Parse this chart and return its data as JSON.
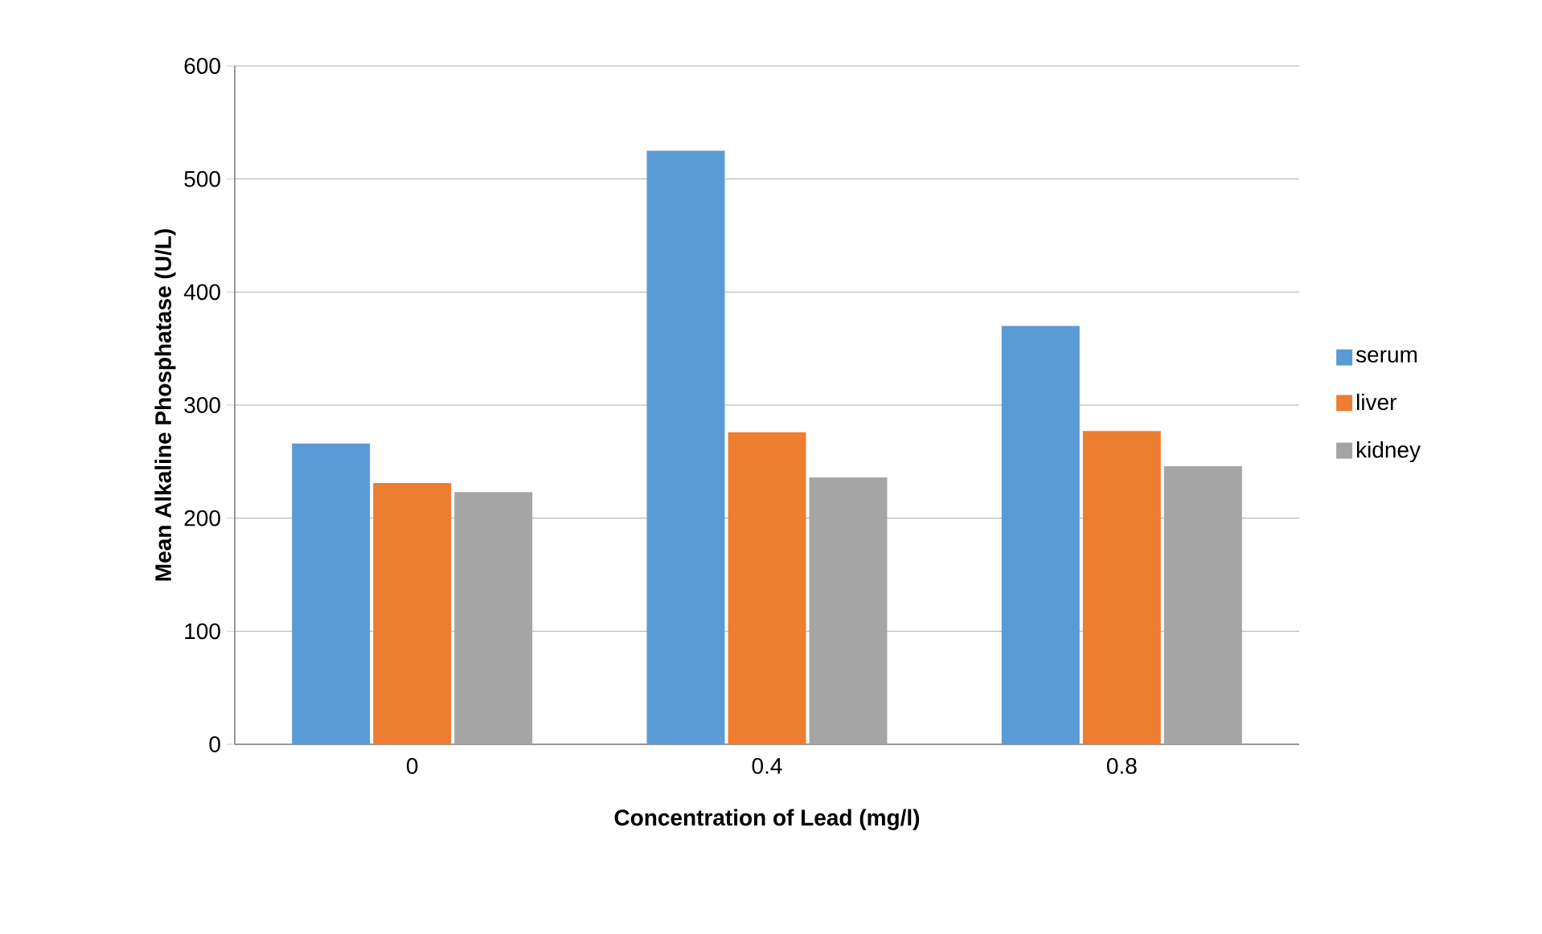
{
  "chart_data": {
    "type": "bar",
    "xlabel": "Concentration of Lead (mg/l)",
    "ylabel": "Mean Alkaline  Phosphatase (U/L)",
    "categories": [
      "0",
      "0.4",
      "0.8"
    ],
    "series": [
      {
        "name": "serum",
        "color": "#5b9bd5",
        "values": [
          266,
          525,
          370
        ]
      },
      {
        "name": "liver",
        "color": "#ed7d31",
        "values": [
          231,
          276,
          277
        ]
      },
      {
        "name": "kidney",
        "color": "#a5a5a5",
        "values": [
          223,
          236,
          246
        ]
      }
    ],
    "ylim": [
      0,
      600
    ],
    "yticks": [
      0,
      100,
      200,
      300,
      400,
      500,
      600
    ],
    "grid": "y",
    "legend": "right"
  }
}
